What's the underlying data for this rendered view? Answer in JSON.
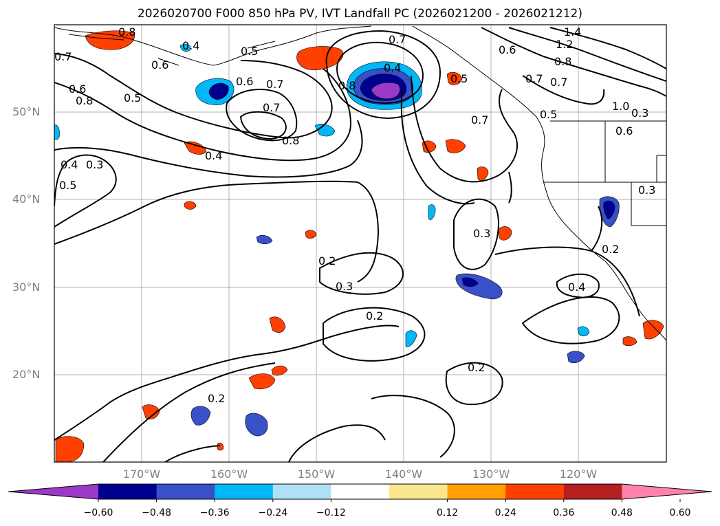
{
  "title": "2026020700 F000 850 hPa PV, IVT Landfall PC (2026021200 - 2026021212)",
  "lat_labels": [
    "50°N",
    "40°N",
    "30°N",
    "20°N"
  ],
  "lon_labels": [
    "170°W",
    "160°W",
    "150°W",
    "140°W",
    "130°W",
    "120°W"
  ],
  "colorbar": {
    "ticks": [
      "−0.60",
      "−0.48",
      "−0.36",
      "−0.24",
      "−0.12",
      "0.12",
      "0.24",
      "0.36",
      "0.48",
      "0.60"
    ],
    "tick_values": [
      -0.6,
      -0.48,
      -0.36,
      -0.24,
      -0.12,
      0.12,
      0.24,
      0.36,
      0.48,
      0.6
    ],
    "colors": [
      "#9a38c8",
      "#000090",
      "#3850c8",
      "#00b8f8",
      "#b0e0f8",
      "#ffffff",
      "#fae68c",
      "#ffa000",
      "#ff4000",
      "#b42020",
      "#ff82aa"
    ]
  },
  "contour_labels": [
    "0.8",
    "0.7",
    "0.6",
    "0.4",
    "0.5",
    "0.6",
    "0.5",
    "0.8",
    "0.7",
    "0.6",
    "0.8",
    "0.7",
    "0.4",
    "0.7",
    "0.6",
    "0.4",
    "0.5",
    "0.8",
    "0.7",
    "1.4",
    "1.2",
    "0.8",
    "0.7",
    "0.7",
    "0.5",
    "1.0",
    "0.6",
    "0.3",
    "0.4",
    "0.5",
    "0.3",
    "0.2",
    "0.3",
    "0.3",
    "0.2",
    "0.2",
    "0.4",
    "0.2",
    "0.2",
    "0.3"
  ]
}
